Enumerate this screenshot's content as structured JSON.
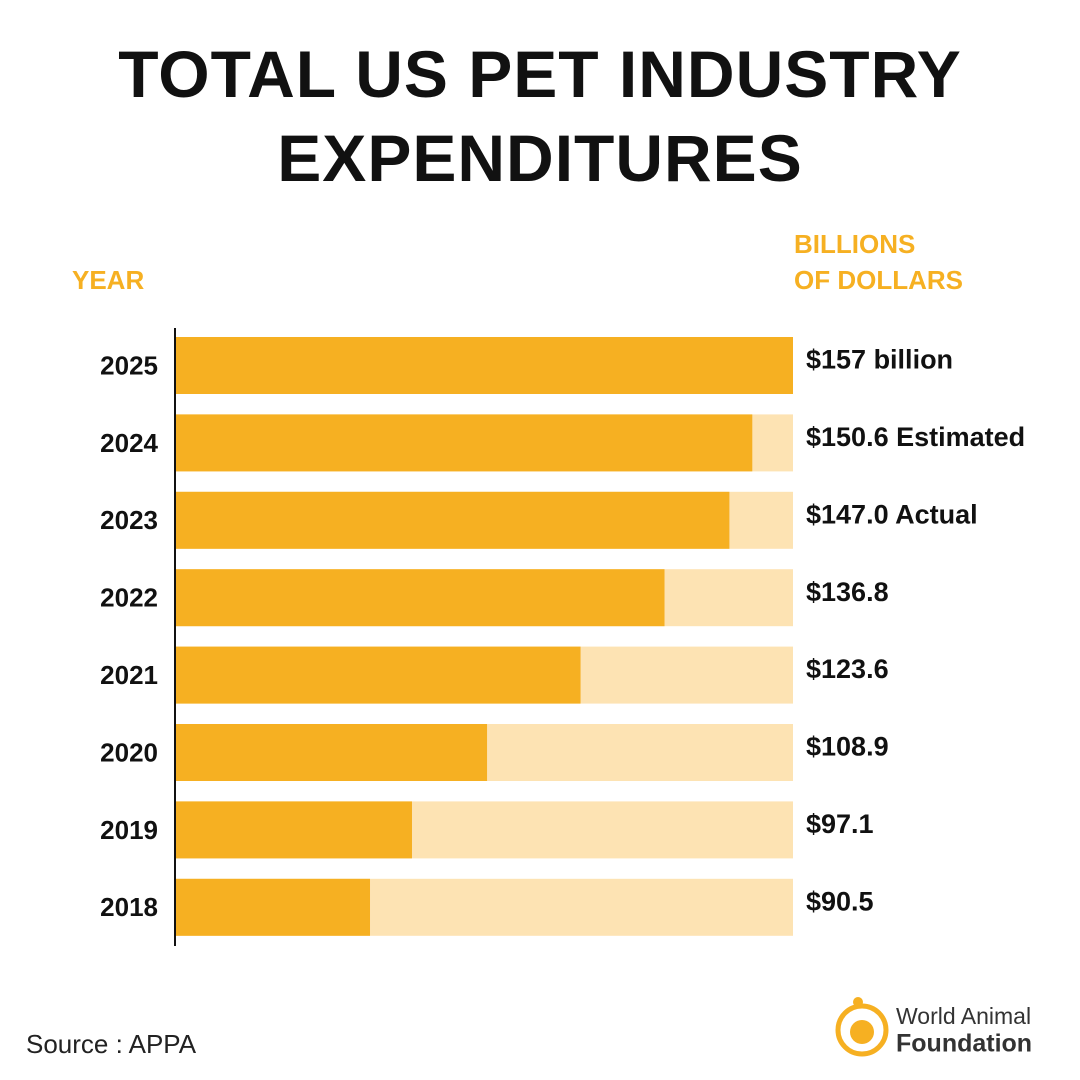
{
  "chart_data": {
    "type": "hbar",
    "title": "TOTAL US PET INDUSTRY EXPENDITURES",
    "category_header": "YEAR",
    "value_header": [
      "BILLIONS",
      "OF DOLLARS"
    ],
    "categories": [
      "2025",
      "2024",
      "2023",
      "2022",
      "2021",
      "2020",
      "2019",
      "2018"
    ],
    "values": [
      157,
      150.6,
      147.0,
      136.8,
      123.6,
      108.9,
      97.1,
      90.5
    ],
    "value_labels": [
      "$157 billion",
      "$150.6 Estimated",
      "$147.0 Actual",
      "$136.8",
      "$123.6",
      "$108.9",
      "$97.1",
      "$90.5"
    ],
    "color": "#f6b022",
    "track_color": "#fde3b3",
    "xlim": [
      60,
      157
    ],
    "source": "Source : APPA",
    "logo": [
      "World Animal",
      "Foundation"
    ]
  }
}
